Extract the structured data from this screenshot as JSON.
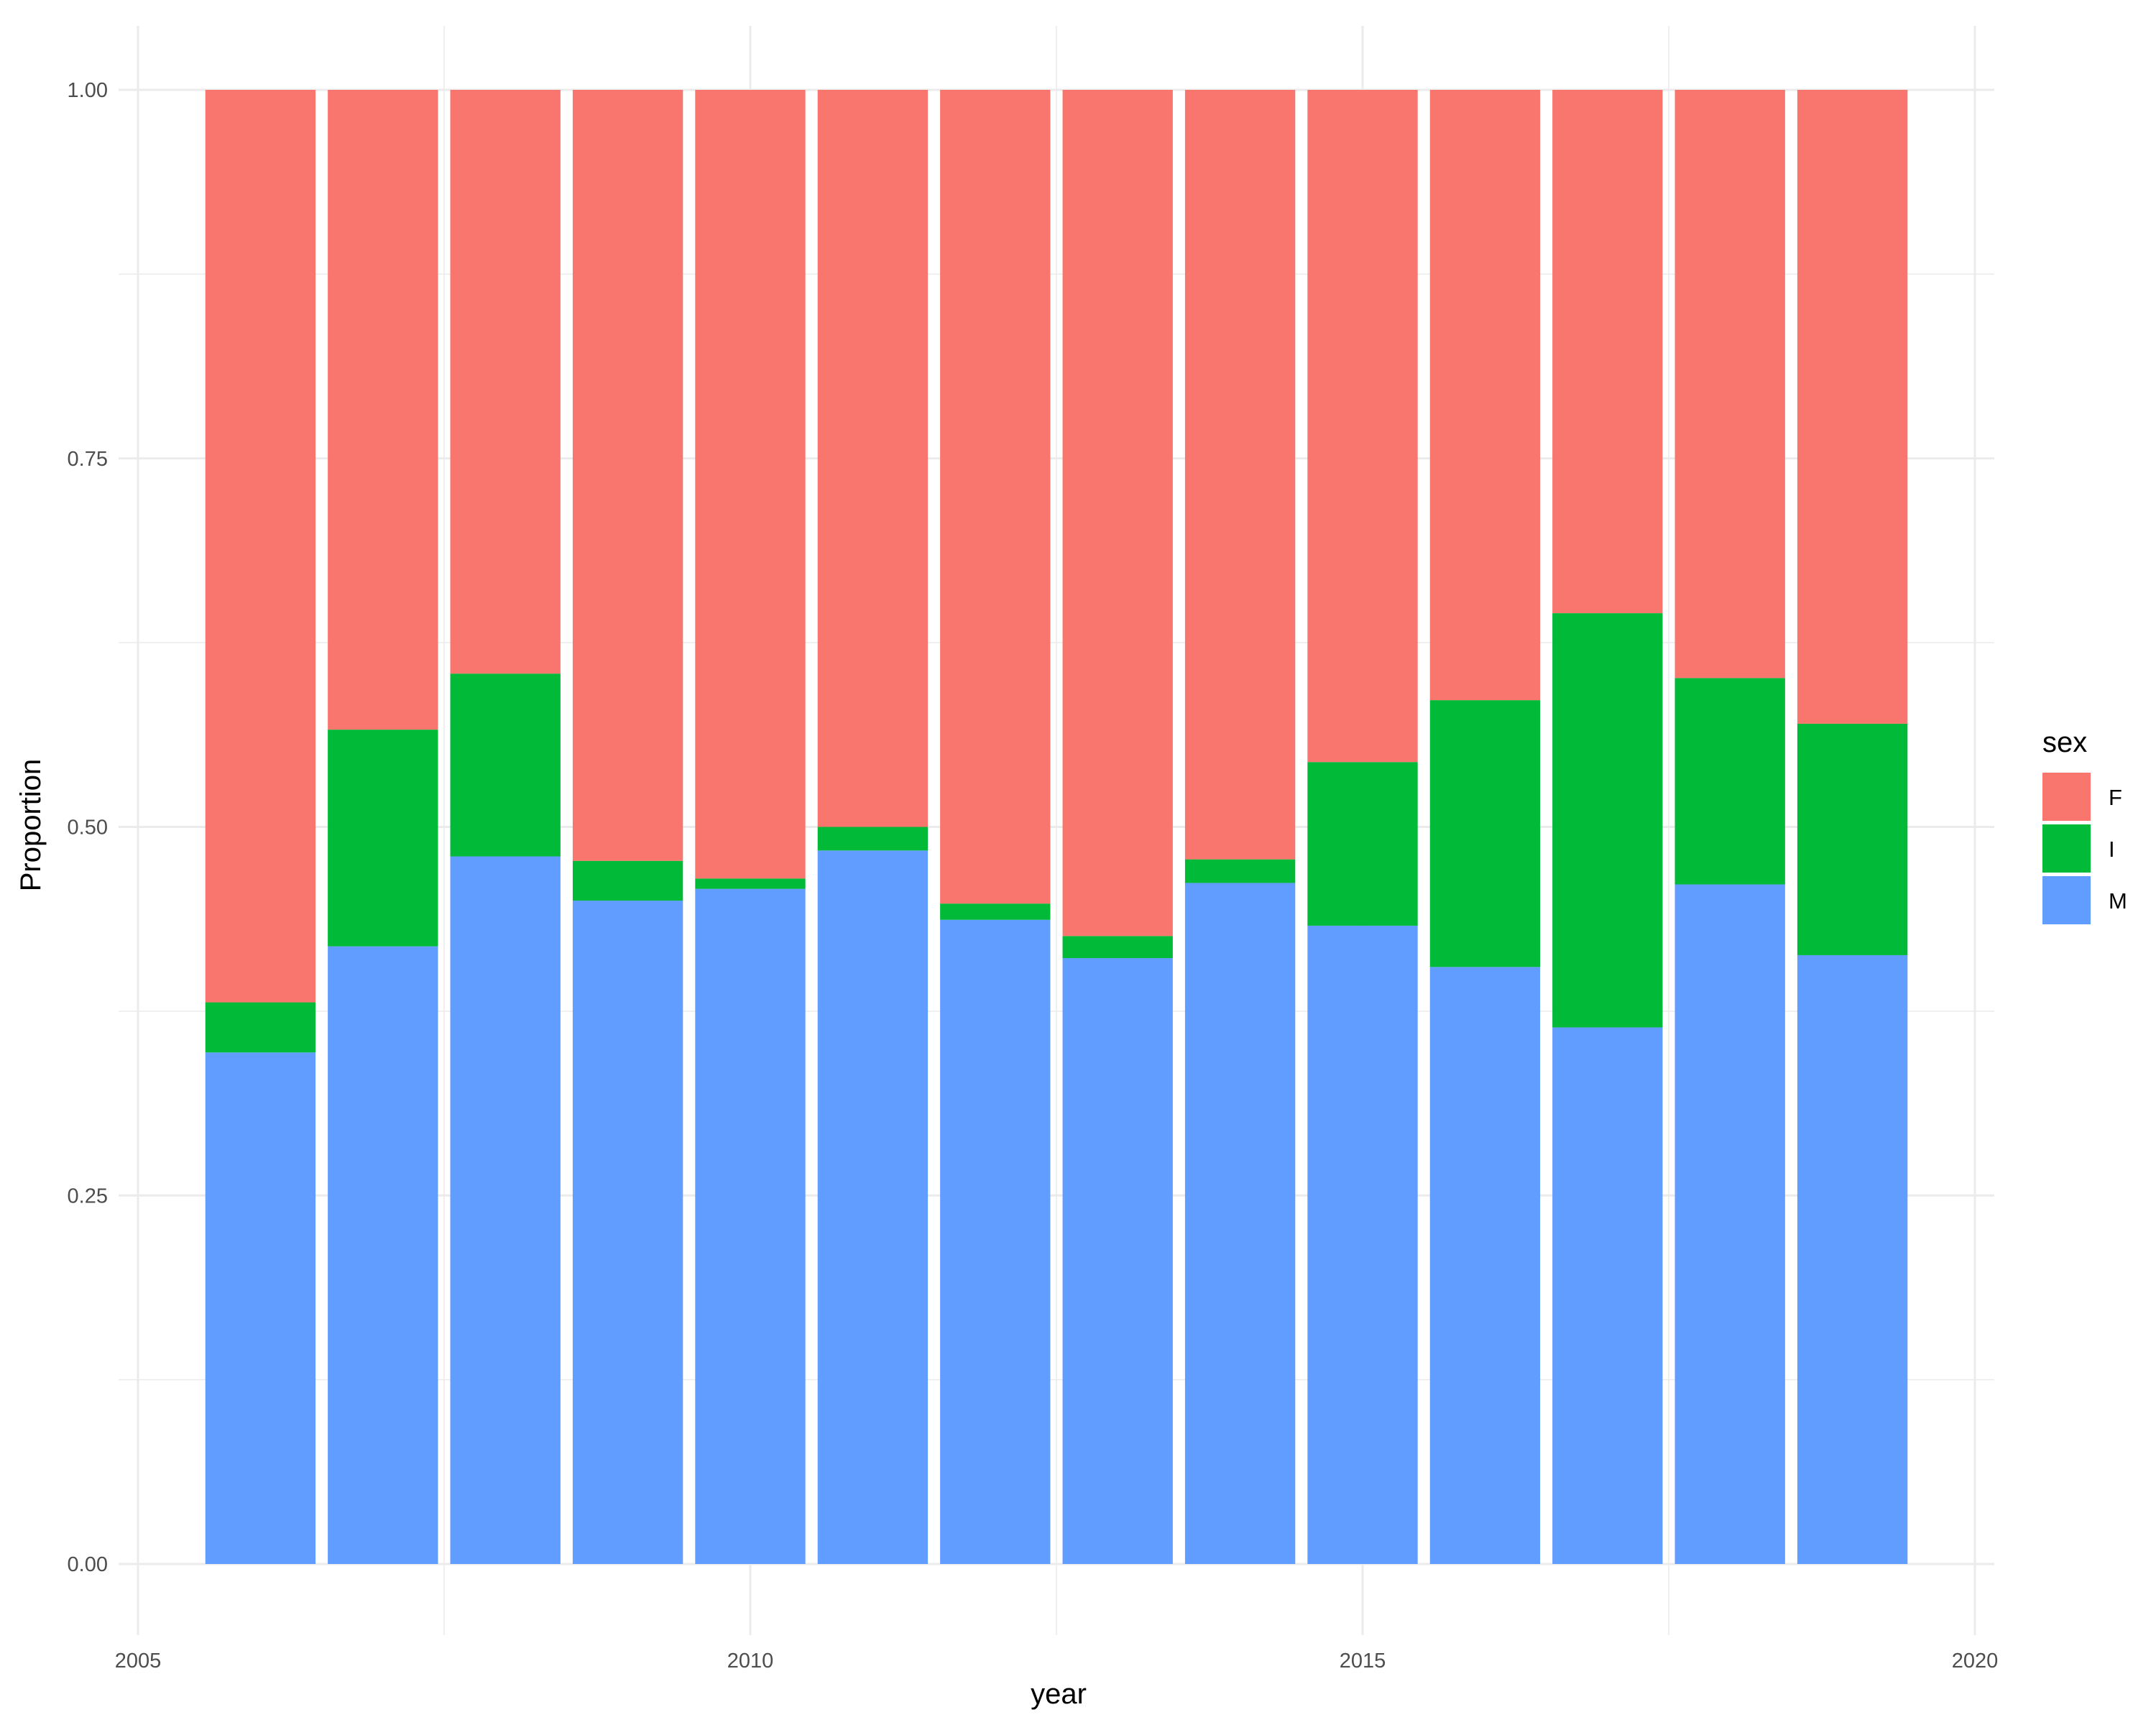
{
  "chart_data": {
    "type": "bar",
    "stacked": true,
    "xlabel": "year",
    "ylabel": "Proportion",
    "xlim": [
      2005,
      2020
    ],
    "ylim": [
      0,
      1
    ],
    "x_ticks": [
      "2005",
      "2010",
      "2015",
      "2020"
    ],
    "x_tick_values": [
      2005,
      2010,
      2015,
      2020
    ],
    "y_ticks": [
      "0.00",
      "0.25",
      "0.50",
      "0.75",
      "1.00"
    ],
    "y_tick_values": [
      0,
      0.25,
      0.5,
      0.75,
      1.0
    ],
    "grid": true,
    "legend": {
      "title": "sex",
      "placement": "right"
    },
    "x": [
      2006,
      2007,
      2008,
      2009,
      2010,
      2011,
      2012,
      2013,
      2014,
      2015,
      2016,
      2017,
      2018,
      2019
    ],
    "series": [
      {
        "name": "M",
        "color": "#619CFF",
        "values": [
          0.347,
          0.419,
          0.48,
          0.45,
          0.458,
          0.484,
          0.437,
          0.411,
          0.462,
          0.433,
          0.405,
          0.364,
          0.461,
          0.413
        ]
      },
      {
        "name": "I",
        "color": "#00BA38",
        "values": [
          0.034,
          0.147,
          0.124,
          0.027,
          0.007,
          0.016,
          0.011,
          0.015,
          0.016,
          0.111,
          0.181,
          0.281,
          0.14,
          0.157
        ]
      },
      {
        "name": "F",
        "color": "#F8766D",
        "values": [
          0.619,
          0.434,
          0.396,
          0.523,
          0.535,
          0.5,
          0.552,
          0.574,
          0.522,
          0.456,
          0.414,
          0.355,
          0.399,
          0.43
        ]
      }
    ]
  }
}
